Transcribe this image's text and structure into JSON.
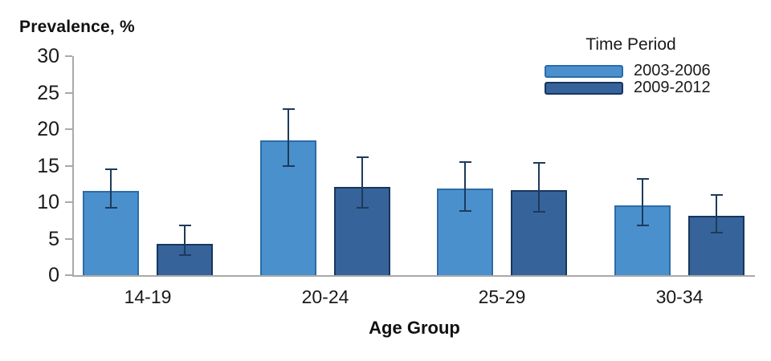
{
  "page": {
    "background": "#ffffff"
  },
  "title": "Prevalence, %",
  "legend": {
    "title": "Time Period"
  },
  "x_axis_title": "Age Group",
  "chart_data": {
    "type": "bar",
    "title": "Prevalence, %",
    "xlabel": "Age Group",
    "ylabel": "Prevalence, %",
    "legend_title": "Time Period",
    "legend_position": "top-right",
    "grid": false,
    "ylim": [
      0,
      30
    ],
    "yticks": [
      0,
      5,
      10,
      15,
      20,
      25,
      30
    ],
    "categories": [
      "14-19",
      "20-24",
      "25-29",
      "30-34"
    ],
    "series": [
      {
        "name": "2003-2006",
        "color": "#4a90cc",
        "border_color": "#2c6ca9",
        "values": [
          11.5,
          18.5,
          11.9,
          9.6
        ],
        "ci_low": [
          9.2,
          15.0,
          8.8,
          6.8
        ],
        "ci_high": [
          14.5,
          22.8,
          15.5,
          13.2
        ]
      },
      {
        "name": "2009-2012",
        "color": "#36639a",
        "border_color": "#17365d",
        "values": [
          4.3,
          12.1,
          11.7,
          8.1
        ],
        "ci_low": [
          2.8,
          9.2,
          8.7,
          5.8
        ],
        "ci_high": [
          6.8,
          16.1,
          15.4,
          11.0
        ]
      }
    ],
    "error_bar_color": "#1e3a5c",
    "axis_color": "#a9a9a9"
  }
}
